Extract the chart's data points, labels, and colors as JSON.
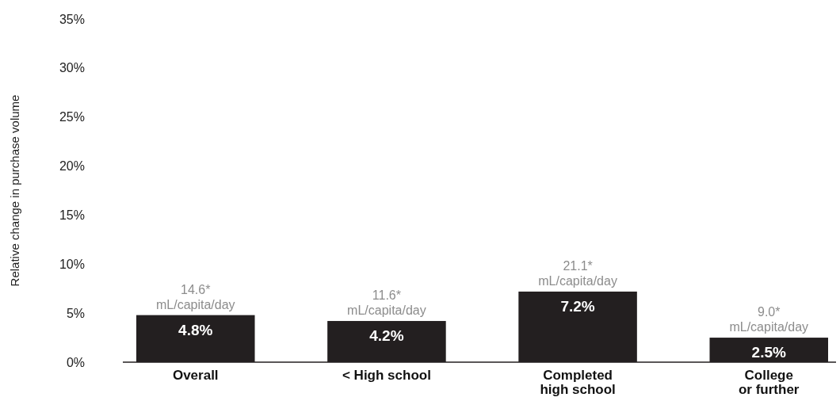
{
  "chart_data": {
    "type": "bar",
    "ylabel": "Relative change in purchase volume",
    "categories": [
      "Overall",
      "< High school",
      "Completed\nhigh school",
      "College\nor further"
    ],
    "values": [
      4.8,
      4.2,
      7.2,
      2.5
    ],
    "color": "#231f20",
    "value_labels": [
      "4.8%",
      "4.2%",
      "7.2%",
      "2.5%"
    ],
    "ylim": [
      0,
      35
    ],
    "yticks": [
      {
        "value": 0,
        "label": "0%"
      },
      {
        "value": 5,
        "label": "5%"
      },
      {
        "value": 10,
        "label": "10%"
      },
      {
        "value": 15,
        "label": "15%"
      },
      {
        "value": 20,
        "label": "20%"
      },
      {
        "value": 25,
        "label": "25%"
      },
      {
        "value": 30,
        "label": "30%"
      },
      {
        "value": 35,
        "label": "35%"
      }
    ],
    "annotations": [
      {
        "text": "14.6*\nmL/capita/day",
        "x": "Overall",
        "y": 4.8
      },
      {
        "text": "11.6*\nmL/capita/day",
        "x": "< High school",
        "y": 4.2
      },
      {
        "text": "21.1*\nmL/capita/day",
        "x": "Completed\nhigh school",
        "y": 7.2
      },
      {
        "text": "9.0*\nmL/capita/day",
        "x": "College\nor further",
        "y": 2.5
      }
    ]
  }
}
